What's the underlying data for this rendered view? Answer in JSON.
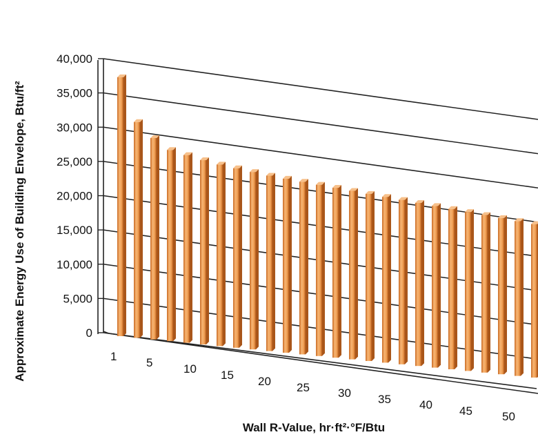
{
  "chart_data": {
    "type": "bar",
    "title": "",
    "xlabel": "Wall R-Value, hr·ft²·°F/Btu",
    "ylabel": "Approximate Energy Use of Building Envelope, Btu/ft²",
    "ylim": [
      0,
      40000
    ],
    "y_ticks": [
      "0",
      "5,000",
      "10,000",
      "15,000",
      "20,000",
      "25,000",
      "30,000",
      "35,000",
      "40,000"
    ],
    "x_ticks": [
      "1",
      "5",
      "10",
      "15",
      "20",
      "25",
      "30",
      "35",
      "40",
      "45",
      "50"
    ],
    "grid": true,
    "bar_color": "#f0a055",
    "categories": [
      1,
      3,
      5,
      7,
      9,
      11,
      13,
      15,
      17,
      19,
      21,
      23,
      25,
      27,
      29,
      31,
      33,
      35,
      37,
      39,
      41,
      43,
      45,
      47,
      49,
      51
    ],
    "values": [
      37800,
      31500,
      29400,
      27900,
      27400,
      26900,
      26500,
      26200,
      25900,
      25600,
      25400,
      25200,
      25000,
      24800,
      24600,
      24400,
      24200,
      24000,
      23800,
      23600,
      23400,
      23200,
      23000,
      22800,
      22600,
      22400
    ]
  }
}
